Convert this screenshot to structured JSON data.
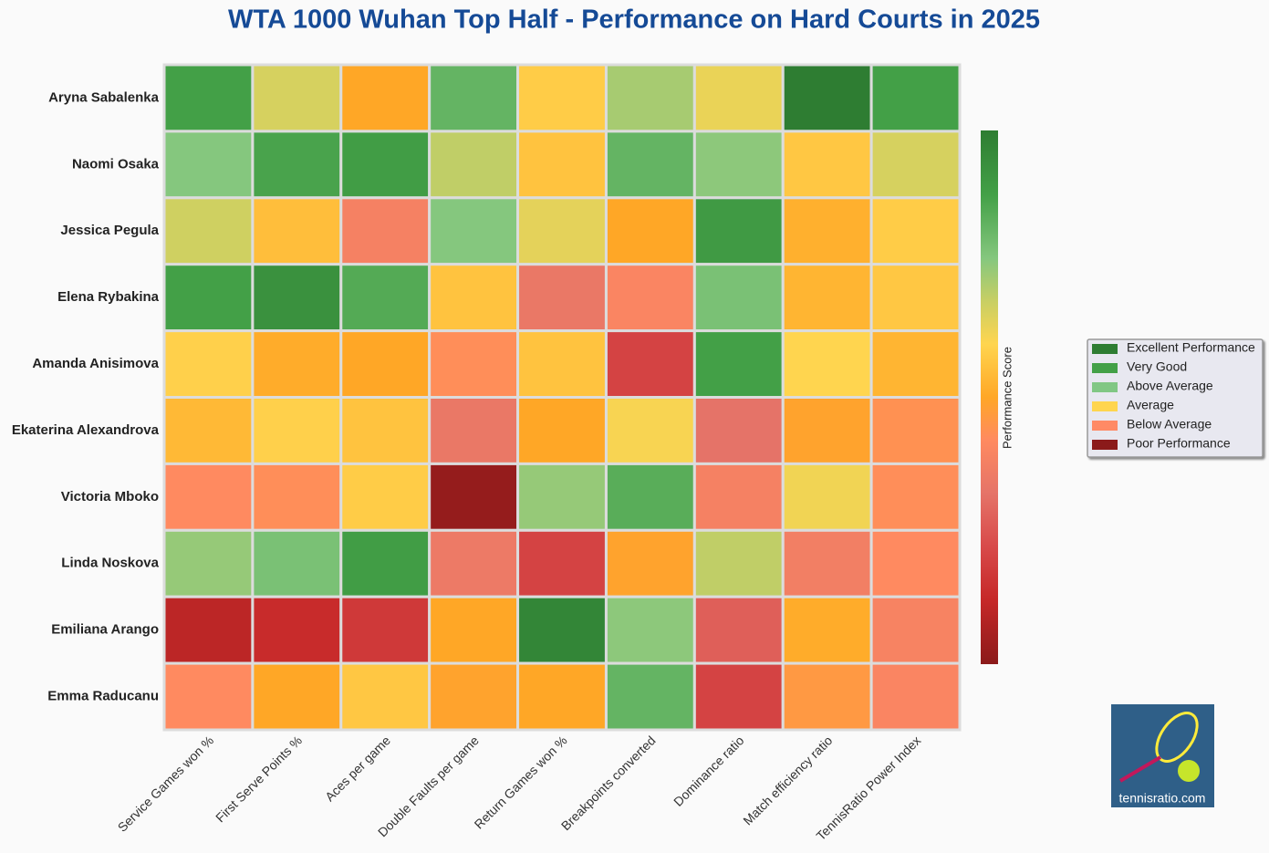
{
  "chart_data": {
    "type": "heatmap",
    "title": "WTA 1000 Wuhan Top Half - Performance on Hard Courts in 2025",
    "rows": [
      "Aryna Sabalenka",
      "Naomi Osaka",
      "Jessica Pegula",
      "Elena Rybakina",
      "Amanda Anisimova",
      "Ekaterina Alexandrova",
      "Victoria Mboko",
      "Linda Noskova",
      "Emiliana Arango",
      "Emma Raducanu"
    ],
    "categories": [
      "Service Games won %",
      "First Serve Points %",
      "Aces per game",
      "Double Faults per game",
      "Return Games won %",
      "Breakpoints converted",
      "Dominance ratio",
      "Match efficiency ratio",
      "TennisRatio Power Index"
    ],
    "values": [
      [
        88,
        66,
        50,
        82,
        58,
        72,
        63,
        100,
        88
      ],
      [
        76,
        87,
        89,
        69,
        56,
        82,
        75,
        57,
        66
      ],
      [
        67,
        55,
        38,
        76,
        64,
        50,
        90,
        52,
        58
      ],
      [
        88,
        93,
        85,
        56,
        34,
        40,
        78,
        53,
        57
      ],
      [
        59,
        51,
        50,
        43,
        56,
        20,
        88,
        60,
        53
      ],
      [
        54,
        59,
        56,
        34,
        50,
        61,
        32,
        49,
        44
      ],
      [
        42,
        43,
        58,
        2,
        74,
        84,
        38,
        62,
        43
      ],
      [
        74,
        78,
        89,
        35,
        20,
        49,
        69,
        37,
        42
      ],
      [
        10,
        13,
        17,
        50,
        97,
        75,
        27,
        51,
        39
      ],
      [
        42,
        50,
        57,
        49,
        50,
        82,
        20,
        46,
        40
      ]
    ],
    "zlim": [
      0,
      100
    ],
    "colorscale": [
      [
        0,
        "#8b1a1a"
      ],
      [
        12,
        "#c62828"
      ],
      [
        22,
        "#d84a4a"
      ],
      [
        32,
        "#e57368"
      ],
      [
        42,
        "#ff8a60"
      ],
      [
        50,
        "#ffa726"
      ],
      [
        60,
        "#ffd54f"
      ],
      [
        68,
        "#c8cf64"
      ],
      [
        76,
        "#85c77e"
      ],
      [
        88,
        "#43a047"
      ],
      [
        100,
        "#2e7d32"
      ]
    ],
    "colorbar_label": "Performance Score",
    "legend": [
      {
        "label": "Excellent Performance",
        "color": "#2e7d32"
      },
      {
        "label": "Very Good",
        "color": "#43a047"
      },
      {
        "label": "Above Average",
        "color": "#81c784"
      },
      {
        "label": "Average",
        "color": "#ffd54f"
      },
      {
        "label": "Below Average",
        "color": "#ff8a65"
      },
      {
        "label": "Poor Performance",
        "color": "#8b1a1a"
      }
    ],
    "logo_text": "tennisratio.com"
  }
}
